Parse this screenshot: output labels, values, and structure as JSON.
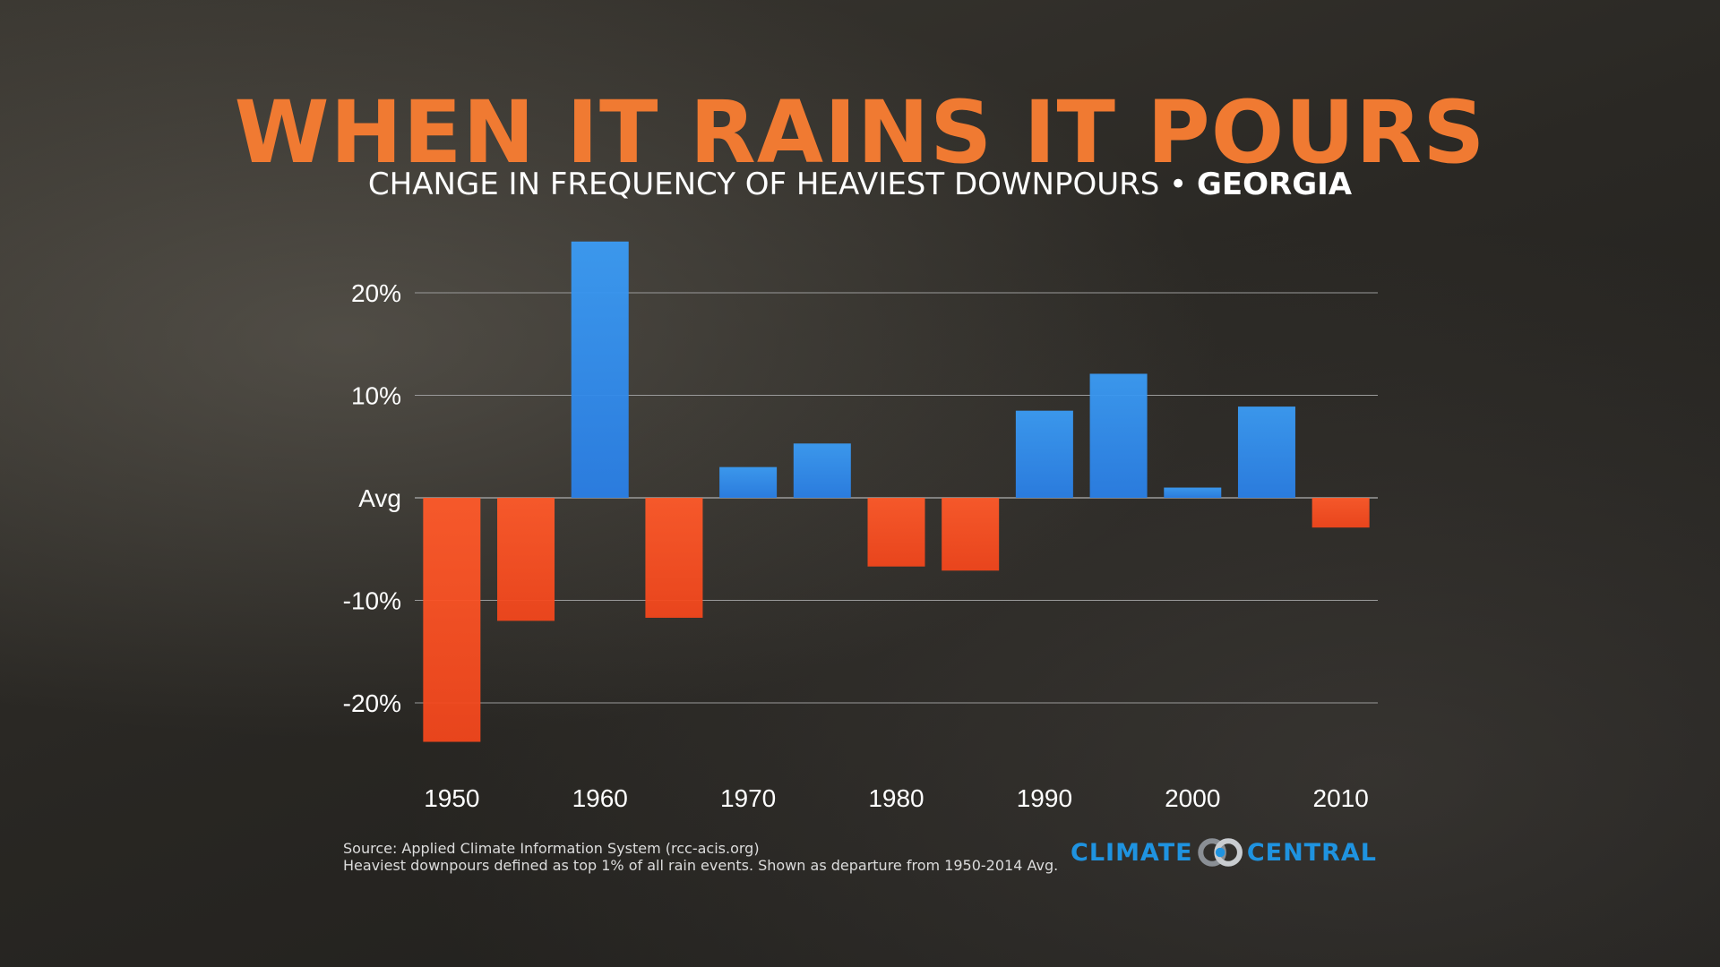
{
  "title": "WHEN IT RAINS IT POURS",
  "subtitle": {
    "prefix": "CHANGE IN FREQUENCY OF HEAVIEST DOWNPOURS • ",
    "region": "GEORGIA"
  },
  "colors": {
    "title": "#f07a32",
    "positive": "#2f8ef0",
    "negative": "#ff4a22",
    "gridline": "#9a9a9a",
    "logo": "#1f93e0"
  },
  "chart_data": {
    "type": "bar",
    "title": "WHEN IT RAINS IT POURS",
    "subtitle": "CHANGE IN FREQUENCY OF HEAVIEST DOWNPOURS • GEORGIA",
    "xlabel": "",
    "ylabel": "",
    "ylim": [
      -25,
      25
    ],
    "yticks": [
      {
        "value": 20,
        "label": "20%"
      },
      {
        "value": 10,
        "label": "10%"
      },
      {
        "value": 0,
        "label": "Avg"
      },
      {
        "value": -10,
        "label": "-10%"
      },
      {
        "value": -20,
        "label": "-20%"
      }
    ],
    "xtick_labels": [
      "1950",
      "1960",
      "1970",
      "1980",
      "1990",
      "2000",
      "2010"
    ],
    "categories": [
      "1950",
      "1955",
      "1960",
      "1965",
      "1970",
      "1975",
      "1980",
      "1985",
      "1990",
      "1995",
      "2000",
      "2005",
      "2010"
    ],
    "values": [
      -23.8,
      -12.0,
      25.0,
      -11.7,
      3.0,
      5.3,
      -6.7,
      -7.1,
      8.5,
      12.1,
      1.0,
      8.9,
      -2.9
    ],
    "grid": true,
    "legend": "none"
  },
  "footer": {
    "source_line": "Source: Applied Climate Information System (rcc-acis.org)",
    "note_line": "Heaviest downpours defined as top 1% of all rain events. Shown as departure from 1950-2014 Avg."
  },
  "logo": {
    "left_word": "CLIMATE",
    "right_word": "CENTRAL",
    "icon": "interlocking-rings-icon"
  }
}
